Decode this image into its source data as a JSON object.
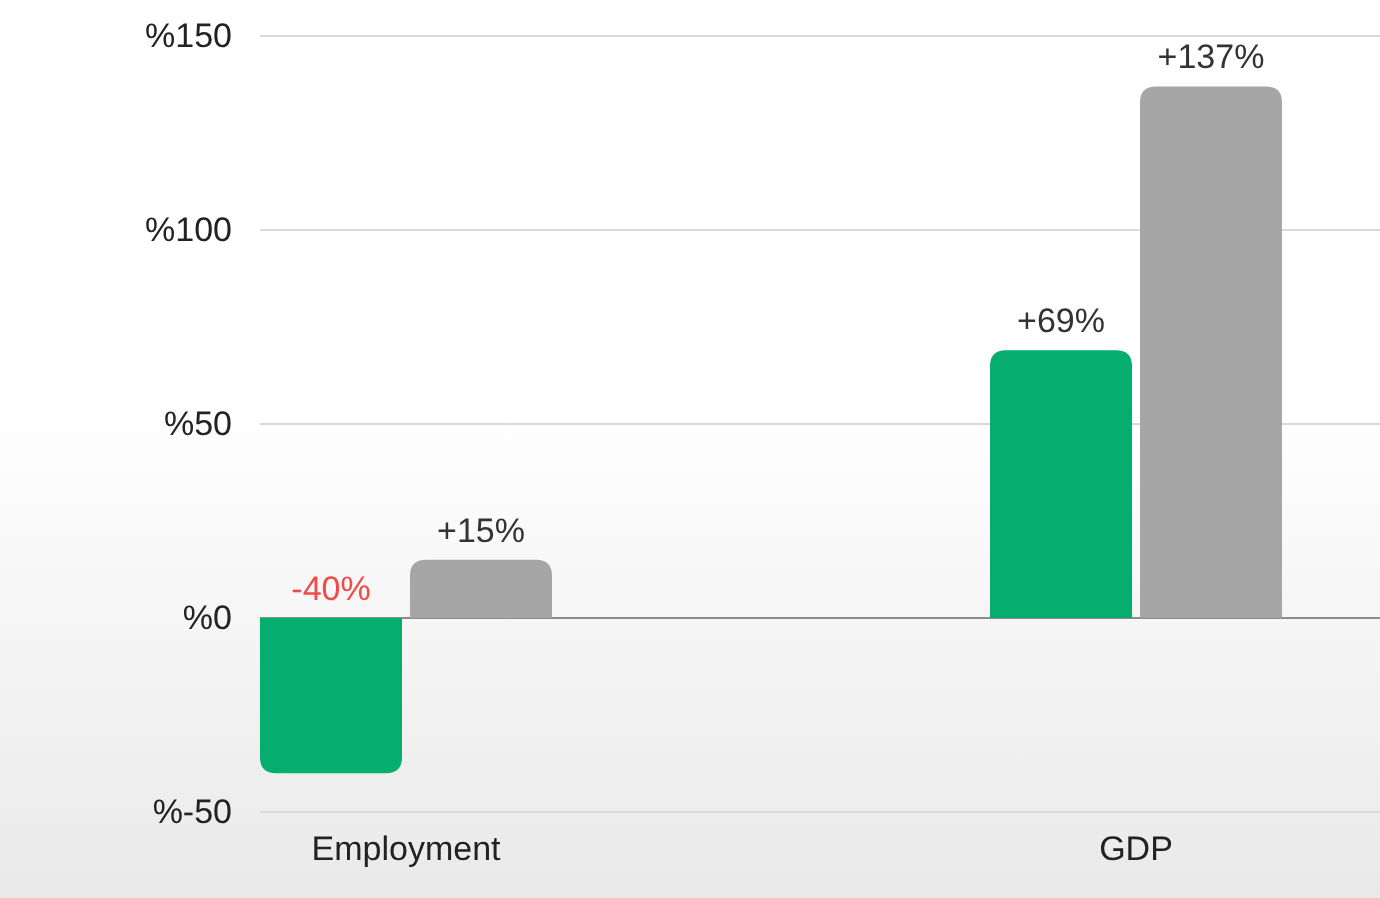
{
  "chart_data": {
    "type": "bar",
    "categories": [
      "Employment",
      "GDP"
    ],
    "series": [
      {
        "color": "#06ae6e",
        "values": [
          -40,
          69
        ],
        "value_labels": [
          "-40%",
          "+69%"
        ]
      },
      {
        "color": "#a6a6a6",
        "values": [
          15,
          137
        ],
        "value_labels": [
          "+15%",
          "+137%"
        ]
      }
    ],
    "ylim": [
      -50,
      150
    ],
    "yticks": [
      {
        "value": -50,
        "label": "%-50"
      },
      {
        "value": 0,
        "label": "%0"
      },
      {
        "value": 50,
        "label": "%50"
      },
      {
        "value": 100,
        "label": "%100"
      },
      {
        "value": 150,
        "label": "%150"
      }
    ],
    "grid": "y"
  }
}
